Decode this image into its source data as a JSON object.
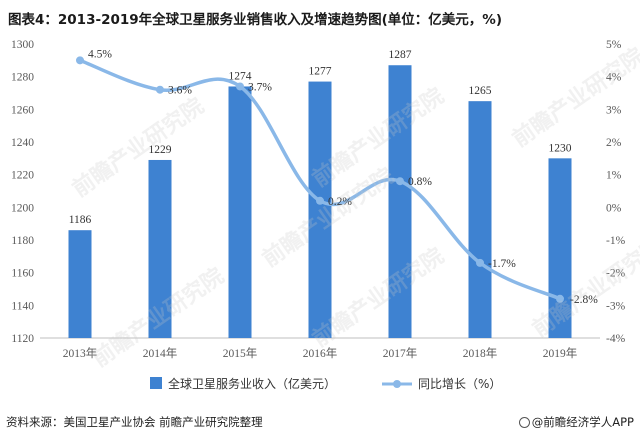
{
  "title": "图表4：2013-2019年全球卫星服务业销售收入及增速趋势图(单位：亿美元，%)",
  "source": "资料来源：美国卫星产业协会 前瞻产业研究院整理",
  "brand": "@前瞻经济学人APP",
  "watermark": "前瞻产业研究院",
  "colors": {
    "bar": "#3e82d1",
    "line": "#8ab8e8",
    "axis": "#bfbfbf",
    "text": "#595959"
  },
  "chart_data": {
    "type": "bar",
    "categories": [
      "2013年",
      "2014年",
      "2015年",
      "2016年",
      "2017年",
      "2018年",
      "2019年"
    ],
    "series": [
      {
        "name": "全球卫星服务业收入（亿美元）",
        "type": "bar",
        "axis": "left",
        "values": [
          1186,
          1229,
          1274,
          1277,
          1287,
          1265,
          1230
        ],
        "labels": [
          "1186",
          "1229",
          "1274",
          "1277",
          "1287",
          "1265",
          "1230"
        ]
      },
      {
        "name": "同比增长（%）",
        "type": "line",
        "axis": "right",
        "values": [
          4.5,
          3.6,
          3.7,
          0.2,
          0.8,
          -1.7,
          -2.8
        ],
        "labels": [
          "4.5%",
          "3.6%",
          "3.7%",
          "0.2%",
          "0.8%",
          "-1.7%",
          "-2.8%"
        ]
      }
    ],
    "ylim_left": [
      1120,
      1300
    ],
    "yticks_left": [
      "1120",
      "1140",
      "1160",
      "1180",
      "1200",
      "1220",
      "1240",
      "1260",
      "1280",
      "1300"
    ],
    "ylim_right": [
      -4,
      5
    ],
    "yticks_right": [
      "-4%",
      "-3%",
      "-2%",
      "-1%",
      "0%",
      "1%",
      "2%",
      "3%",
      "4%",
      "5%"
    ],
    "legend_position": "bottom",
    "grid": false
  }
}
